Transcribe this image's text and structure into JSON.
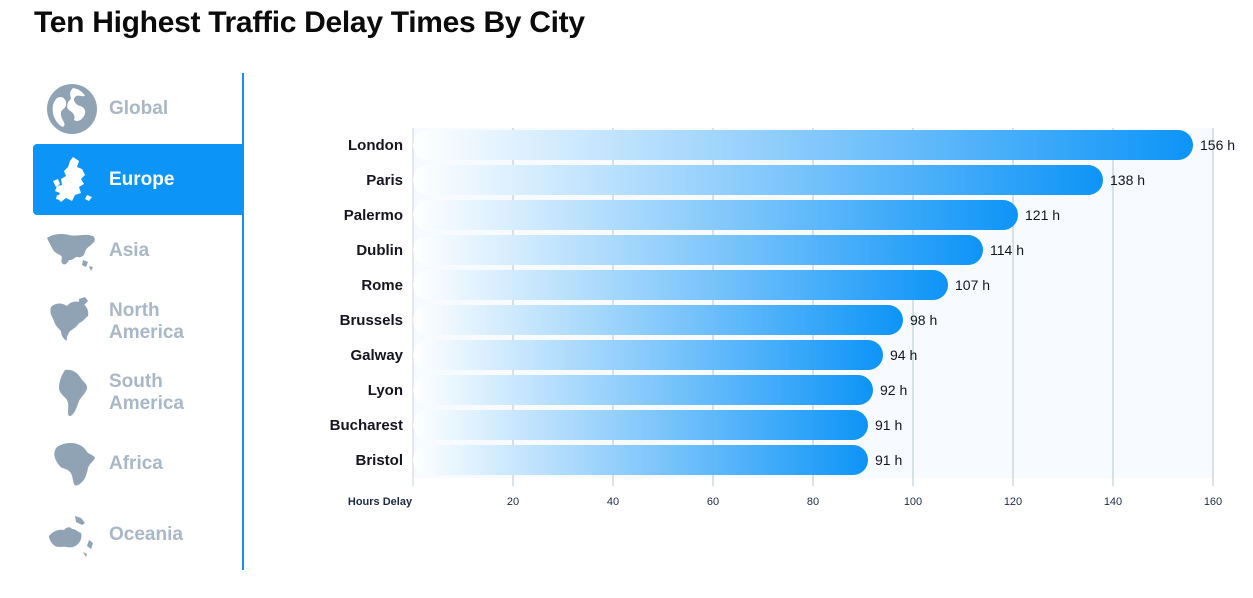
{
  "page": {
    "title": "Ten Highest Traffic Delay Times By City"
  },
  "sidebar": {
    "items": [
      {
        "label": "Global",
        "icon": "globe-icon",
        "active": false
      },
      {
        "label": "Europe",
        "icon": "europe-map-icon",
        "active": true
      },
      {
        "label": "Asia",
        "icon": "asia-map-icon",
        "active": false
      },
      {
        "label": "North\nAmerica",
        "icon": "north-america-map-icon",
        "active": false
      },
      {
        "label": "South\nAmerica",
        "icon": "south-america-map-icon",
        "active": false
      },
      {
        "label": "Africa",
        "icon": "africa-map-icon",
        "active": false
      },
      {
        "label": "Oceania",
        "icon": "oceania-map-icon",
        "active": false
      }
    ],
    "colors": {
      "active_bg": "#0d94f7",
      "inactive_text": "#a9b8c6",
      "icon": "#8fa3b5"
    }
  },
  "chart_data": {
    "type": "bar",
    "orientation": "horizontal",
    "title": "",
    "xlabel": "Hours Delay",
    "ylabel": "",
    "categories": [
      "London",
      "Paris",
      "Palermo",
      "Dublin",
      "Rome",
      "Brussels",
      "Galway",
      "Lyon",
      "Bucharest",
      "Bristol"
    ],
    "values": [
      156,
      138,
      121,
      114,
      107,
      98,
      94,
      92,
      91,
      91
    ],
    "value_labels": [
      "156 h",
      "138 h",
      "121 h",
      "114 h",
      "107 h",
      "98 h",
      "94 h",
      "92 h",
      "91 h",
      "91 h"
    ],
    "xticks": [
      20,
      40,
      60,
      80,
      100,
      120,
      140,
      160
    ],
    "xlim": [
      0,
      160
    ],
    "grid": true,
    "legend": "none",
    "bar_color": "#0d94f7"
  }
}
